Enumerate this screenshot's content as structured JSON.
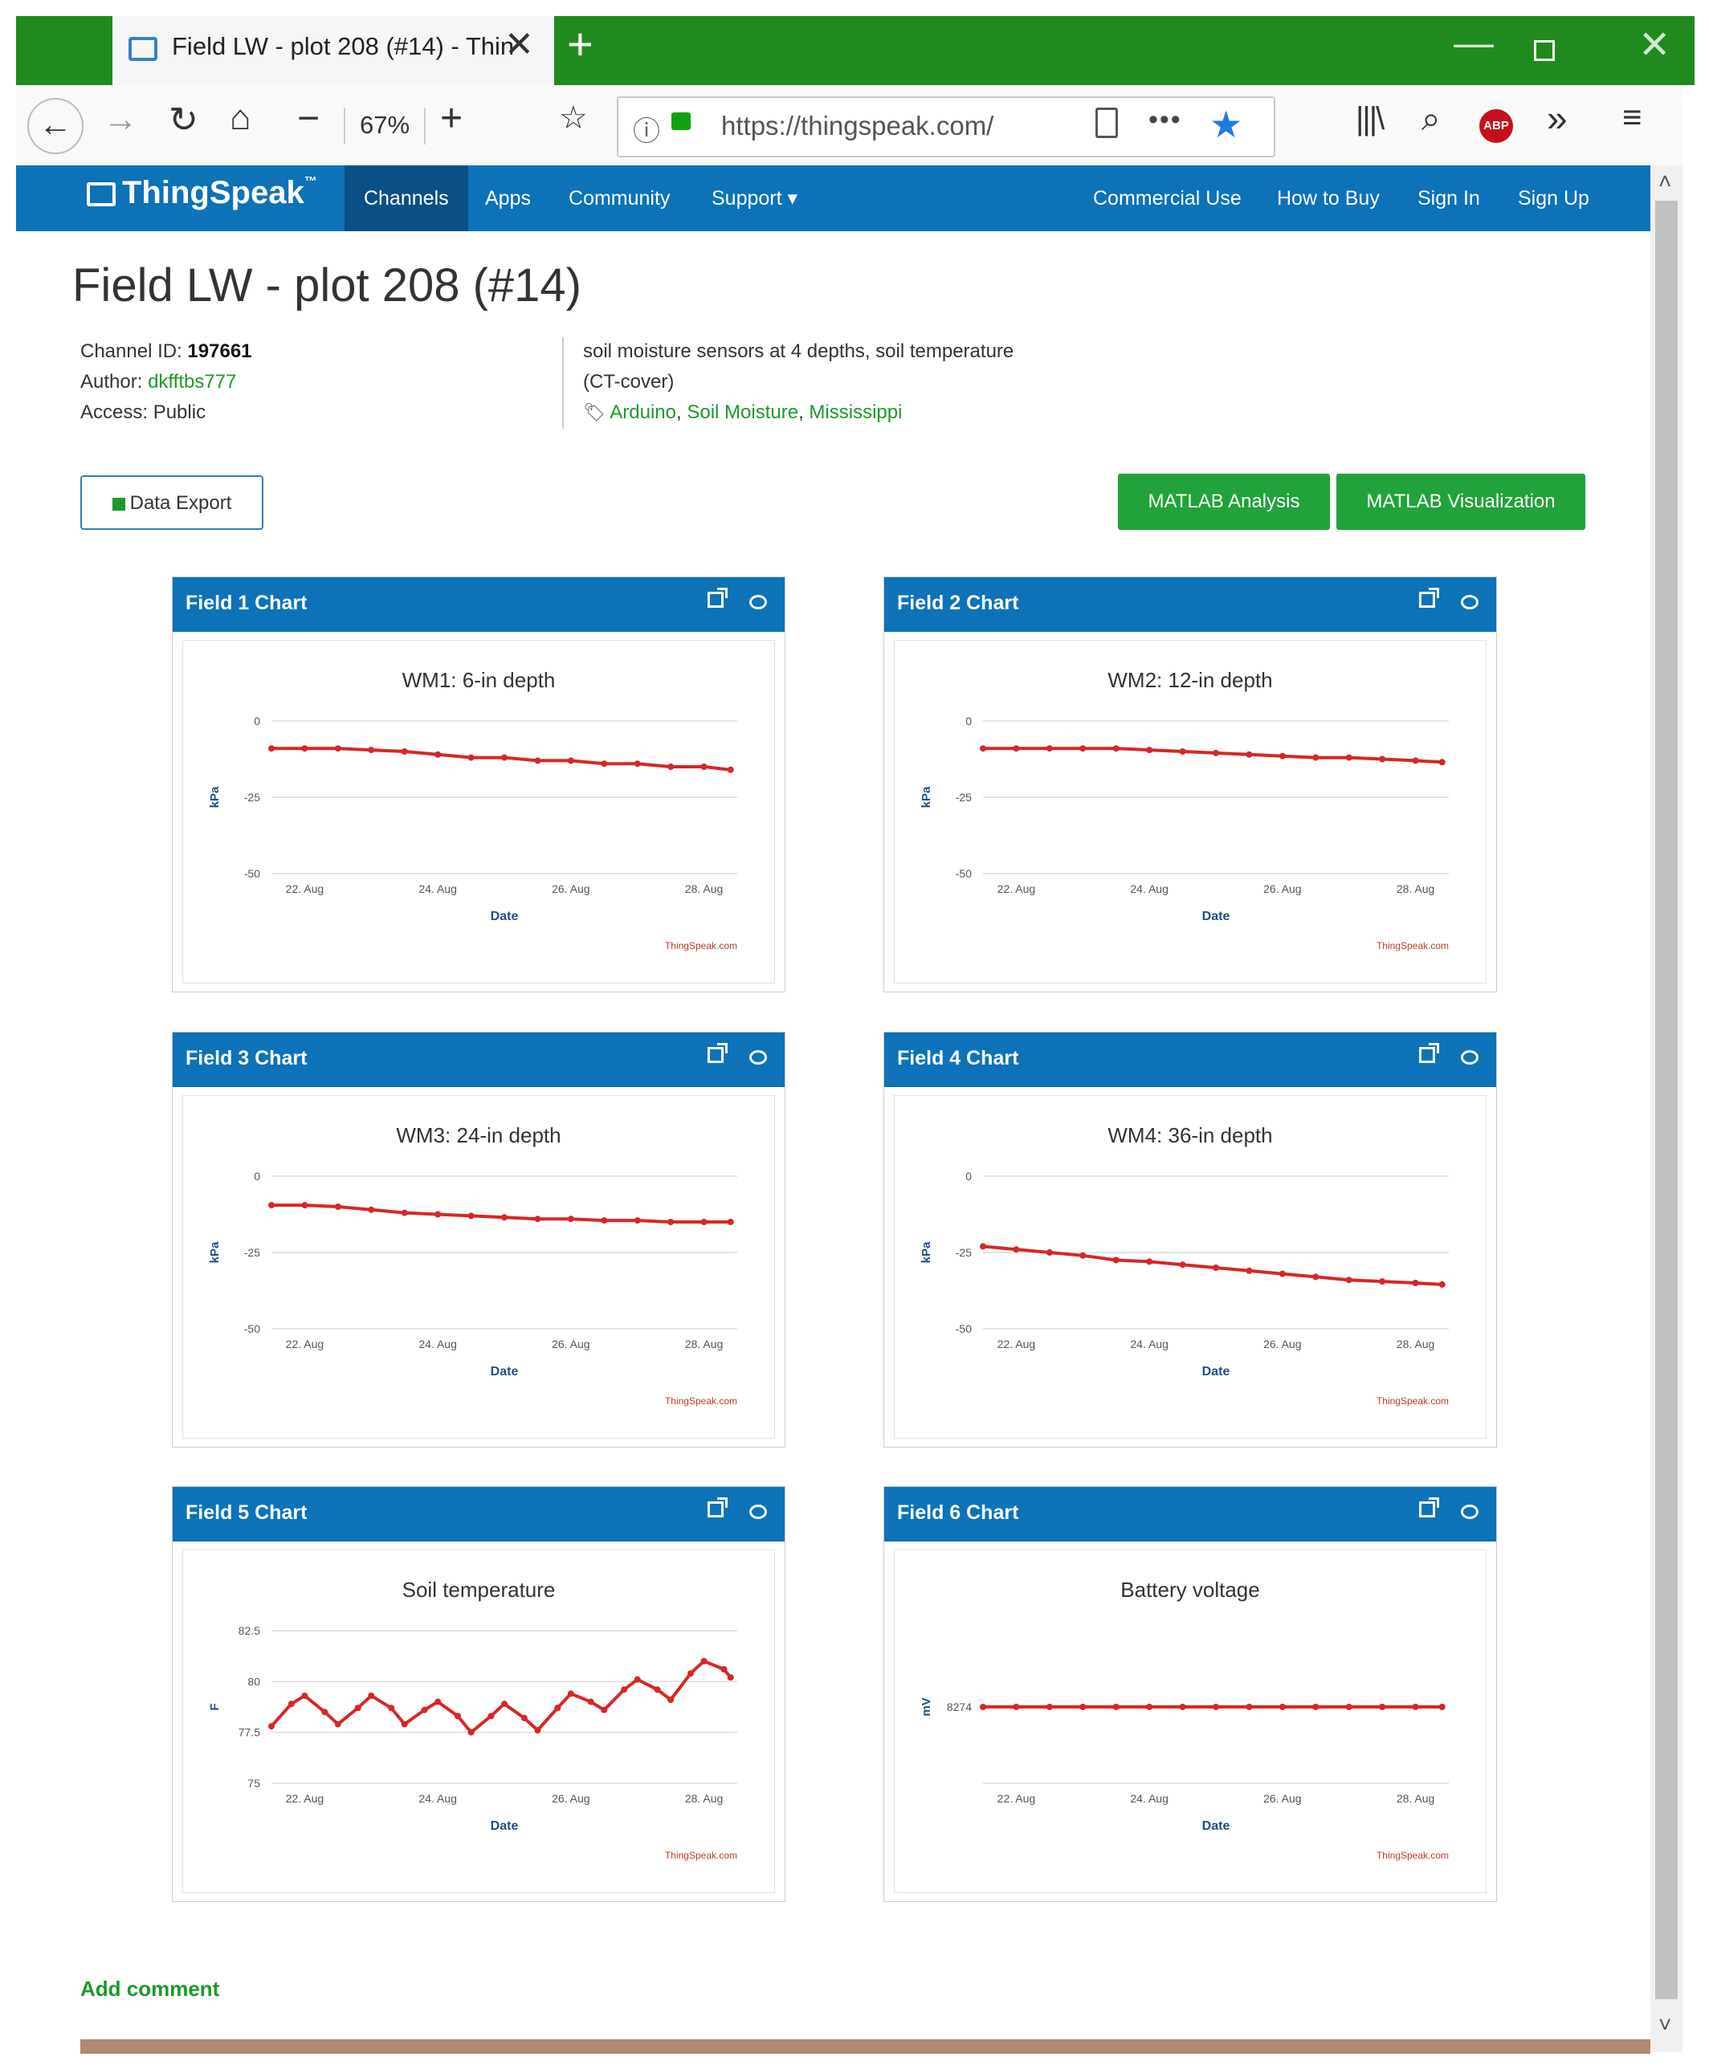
{
  "browser": {
    "tab_title": "Field LW - plot 208 (#14) - Thin",
    "zoom": "67%",
    "url": "https://thingspeak.com/"
  },
  "site": {
    "logo": "ThingSpeak",
    "logo_tm": "™",
    "nav_left": [
      "Channels",
      "Apps",
      "Community",
      "Support ▾"
    ],
    "nav_right": [
      "Commercial Use",
      "How to Buy",
      "Sign In",
      "Sign Up"
    ]
  },
  "page": {
    "title": "Field LW - plot 208 (#14)",
    "channel_id_label": "Channel ID:",
    "channel_id": "197661",
    "author_label": "Author:",
    "author": "dkfftbs777",
    "access_label": "Access:",
    "access": "Public",
    "description_line1": "soil moisture sensors at 4 depths, soil temperature",
    "description_line2": "(CT-cover)",
    "tags": [
      "Arduino",
      "Soil Moisture",
      "Mississippi"
    ],
    "btn_export": "Data Export",
    "btn_analysis": "MATLAB Analysis",
    "btn_visualization": "MATLAB Visualization",
    "add_comment": "Add comment",
    "credit": "ThingSpeak.com"
  },
  "panels": [
    {
      "title": "Field 1 Chart"
    },
    {
      "title": "Field 2 Chart"
    },
    {
      "title": "Field 3 Chart"
    },
    {
      "title": "Field 4 Chart"
    },
    {
      "title": "Field 5 Chart"
    },
    {
      "title": "Field 6 Chart"
    }
  ],
  "colors": {
    "series": "#d62728",
    "header": "#0d72b8",
    "accent_green": "#21a23a"
  },
  "chart_data": [
    {
      "type": "line",
      "title": "WM1: 6-in depth",
      "xlabel": "Date",
      "ylabel": "kPa",
      "x_ticks": [
        "22. Aug",
        "24. Aug",
        "26. Aug",
        "28. Aug"
      ],
      "y_ticks": [
        "0",
        "-25",
        "-50"
      ],
      "ylim": [
        -50,
        0
      ],
      "xlim": [
        21.5,
        28.5
      ],
      "series": [
        {
          "x": [
            21.5,
            22.0,
            22.5,
            23.0,
            23.5,
            24.0,
            24.5,
            25.0,
            25.5,
            26.0,
            26.5,
            27.0,
            27.5,
            28.0,
            28.4
          ],
          "y": [
            -9,
            -9,
            -9,
            -9.5,
            -10,
            -11,
            -12,
            -12,
            -13,
            -13,
            -14,
            -14,
            -15,
            -15,
            -16
          ]
        }
      ]
    },
    {
      "type": "line",
      "title": "WM2: 12-in depth",
      "xlabel": "Date",
      "ylabel": "kPa",
      "x_ticks": [
        "22. Aug",
        "24. Aug",
        "26. Aug",
        "28. Aug"
      ],
      "y_ticks": [
        "0",
        "-25",
        "-50"
      ],
      "ylim": [
        -50,
        0
      ],
      "xlim": [
        21.5,
        28.5
      ],
      "series": [
        {
          "x": [
            21.5,
            22.0,
            22.5,
            23.0,
            23.5,
            24.0,
            24.5,
            25.0,
            25.5,
            26.0,
            26.5,
            27.0,
            27.5,
            28.0,
            28.4
          ],
          "y": [
            -9,
            -9,
            -9,
            -9,
            -9,
            -9.5,
            -10,
            -10.5,
            -11,
            -11.5,
            -12,
            -12,
            -12.5,
            -13,
            -13.5
          ]
        }
      ]
    },
    {
      "type": "line",
      "title": "WM3: 24-in depth",
      "xlabel": "Date",
      "ylabel": "kPa",
      "x_ticks": [
        "22. Aug",
        "24. Aug",
        "26. Aug",
        "28. Aug"
      ],
      "y_ticks": [
        "0",
        "-25",
        "-50"
      ],
      "ylim": [
        -50,
        0
      ],
      "xlim": [
        21.5,
        28.5
      ],
      "series": [
        {
          "x": [
            21.5,
            22.0,
            22.5,
            23.0,
            23.5,
            24.0,
            24.5,
            25.0,
            25.5,
            26.0,
            26.5,
            27.0,
            27.5,
            28.0,
            28.4
          ],
          "y": [
            -9.5,
            -9.5,
            -10,
            -11,
            -12,
            -12.5,
            -13,
            -13.5,
            -14,
            -14,
            -14.5,
            -14.5,
            -15,
            -15,
            -15
          ]
        }
      ]
    },
    {
      "type": "line",
      "title": "WM4: 36-in depth",
      "xlabel": "Date",
      "ylabel": "kPa",
      "x_ticks": [
        "22. Aug",
        "24. Aug",
        "26. Aug",
        "28. Aug"
      ],
      "y_ticks": [
        "0",
        "-25",
        "-50"
      ],
      "ylim": [
        -50,
        0
      ],
      "xlim": [
        21.5,
        28.5
      ],
      "series": [
        {
          "x": [
            21.5,
            22.0,
            22.5,
            23.0,
            23.5,
            24.0,
            24.5,
            25.0,
            25.5,
            26.0,
            26.5,
            27.0,
            27.5,
            28.0,
            28.4
          ],
          "y": [
            -23,
            -24,
            -25,
            -26,
            -27.5,
            -28,
            -29,
            -30,
            -31,
            -32,
            -33,
            -34,
            -34.5,
            -35,
            -35.5
          ]
        }
      ]
    },
    {
      "type": "line",
      "title": "Soil temperature",
      "xlabel": "Date",
      "ylabel": "F",
      "x_ticks": [
        "22. Aug",
        "24. Aug",
        "26. Aug",
        "28. Aug"
      ],
      "y_ticks": [
        "82.5",
        "80",
        "77.5",
        "75"
      ],
      "ylim": [
        75,
        82.5
      ],
      "xlim": [
        21.5,
        28.5
      ],
      "series": [
        {
          "x": [
            21.5,
            21.8,
            22.0,
            22.3,
            22.5,
            22.8,
            23.0,
            23.3,
            23.5,
            23.8,
            24.0,
            24.3,
            24.5,
            24.8,
            25.0,
            25.3,
            25.5,
            25.8,
            26.0,
            26.3,
            26.5,
            26.8,
            27.0,
            27.3,
            27.5,
            27.8,
            28.0,
            28.3,
            28.4
          ],
          "y": [
            77.8,
            78.9,
            79.3,
            78.5,
            77.9,
            78.7,
            79.3,
            78.7,
            77.9,
            78.6,
            79.0,
            78.3,
            77.5,
            78.3,
            78.9,
            78.2,
            77.6,
            78.7,
            79.4,
            79.0,
            78.6,
            79.6,
            80.1,
            79.6,
            79.1,
            80.4,
            81.0,
            80.6,
            80.2
          ]
        }
      ]
    },
    {
      "type": "line",
      "title": "Battery voltage",
      "xlabel": "Date",
      "ylabel": "mV",
      "x_ticks": [
        "22. Aug",
        "24. Aug",
        "26. Aug",
        "28. Aug"
      ],
      "y_ticks": [
        "8274"
      ],
      "xlim": [
        21.5,
        28.5
      ],
      "series": [
        {
          "x": [
            21.5,
            22.0,
            22.5,
            23.0,
            23.5,
            24.0,
            24.5,
            25.0,
            25.5,
            26.0,
            26.5,
            27.0,
            27.5,
            28.0,
            28.4
          ],
          "y": [
            8274,
            8274,
            8274,
            8274,
            8274,
            8274,
            8274,
            8274,
            8274,
            8274,
            8274,
            8274,
            8274,
            8274,
            8274
          ]
        }
      ]
    }
  ]
}
